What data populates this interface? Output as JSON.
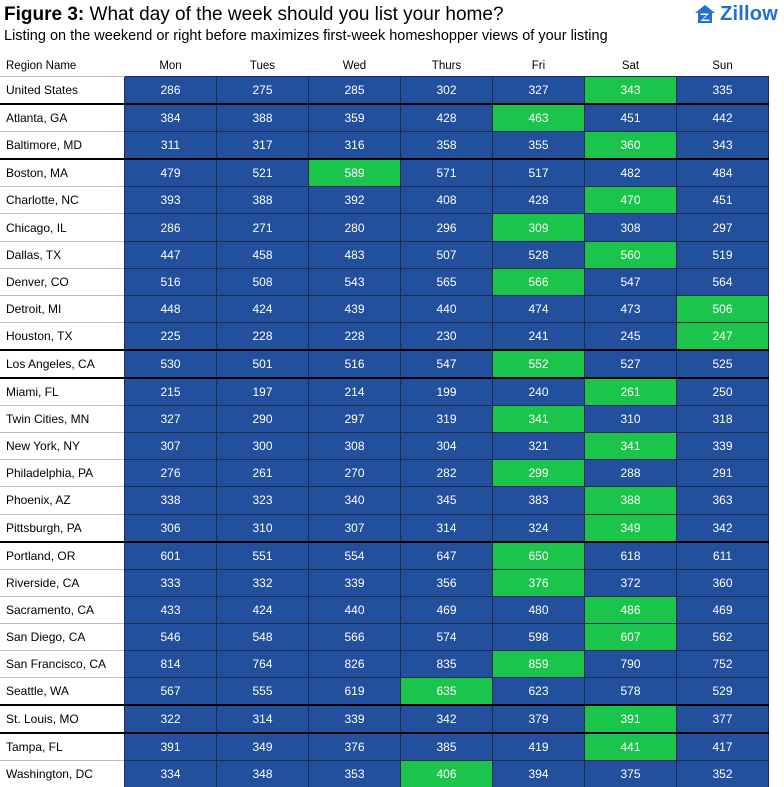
{
  "header": {
    "title_prefix": "Figure 3:",
    "title": " What day of the week should you list your home?",
    "subtitle": "Listing on the weekend or right before maximizes first-week homeshopper views of your listing",
    "logo_text": "Zillow",
    "logo_icon": "zillow-house-icon"
  },
  "colors": {
    "cell": "#23509c",
    "highlight": "#1bc44a",
    "logo": "#1f6fd6"
  },
  "chart_data": {
    "type": "table",
    "row_header": "Region Name",
    "columns": [
      "Mon",
      "Tues",
      "Wed",
      "Thurs",
      "Fri",
      "Sat",
      "Sun"
    ],
    "rows": [
      {
        "region": "United States",
        "values": [
          286,
          275,
          285,
          302,
          327,
          343,
          335
        ],
        "max_col": 5
      },
      {
        "region": "Atlanta, GA",
        "values": [
          384,
          388,
          359,
          428,
          463,
          451,
          442
        ],
        "max_col": 4
      },
      {
        "region": "Baltimore, MD",
        "values": [
          311,
          317,
          316,
          358,
          355,
          360,
          343
        ],
        "max_col": 5
      },
      {
        "region": "Boston, MA",
        "values": [
          479,
          521,
          589,
          571,
          517,
          482,
          484
        ],
        "max_col": 2
      },
      {
        "region": "Charlotte, NC",
        "values": [
          393,
          388,
          392,
          408,
          428,
          470,
          451
        ],
        "max_col": 5
      },
      {
        "region": "Chicago, IL",
        "values": [
          286,
          271,
          280,
          296,
          309,
          308,
          297
        ],
        "max_col": 4
      },
      {
        "region": "Dallas, TX",
        "values": [
          447,
          458,
          483,
          507,
          528,
          560,
          519
        ],
        "max_col": 5
      },
      {
        "region": "Denver, CO",
        "values": [
          516,
          508,
          543,
          565,
          566,
          547,
          564
        ],
        "max_col": 4
      },
      {
        "region": "Detroit, MI",
        "values": [
          448,
          424,
          439,
          440,
          474,
          473,
          506
        ],
        "max_col": 6
      },
      {
        "region": "Houston, TX",
        "values": [
          225,
          228,
          228,
          230,
          241,
          245,
          247
        ],
        "max_col": 6
      },
      {
        "region": "Los Angeles, CA",
        "values": [
          530,
          501,
          516,
          547,
          552,
          527,
          525
        ],
        "max_col": 4
      },
      {
        "region": "Miami, FL",
        "values": [
          215,
          197,
          214,
          199,
          240,
          261,
          250
        ],
        "max_col": 5
      },
      {
        "region": "Twin Cities, MN",
        "values": [
          327,
          290,
          297,
          319,
          341,
          310,
          318
        ],
        "max_col": 4
      },
      {
        "region": "New York, NY",
        "values": [
          307,
          300,
          308,
          304,
          321,
          341,
          339
        ],
        "max_col": 5
      },
      {
        "region": "Philadelphia, PA",
        "values": [
          276,
          261,
          270,
          282,
          299,
          288,
          291
        ],
        "max_col": 4
      },
      {
        "region": "Phoenix, AZ",
        "values": [
          338,
          323,
          340,
          345,
          383,
          388,
          363
        ],
        "max_col": 5
      },
      {
        "region": "Pittsburgh, PA",
        "values": [
          306,
          310,
          307,
          314,
          324,
          349,
          342
        ],
        "max_col": 5
      },
      {
        "region": "Portland, OR",
        "values": [
          601,
          551,
          554,
          647,
          650,
          618,
          611
        ],
        "max_col": 4
      },
      {
        "region": "Riverside, CA",
        "values": [
          333,
          332,
          339,
          356,
          376,
          372,
          360
        ],
        "max_col": 4
      },
      {
        "region": "Sacramento, CA",
        "values": [
          433,
          424,
          440,
          469,
          480,
          486,
          469
        ],
        "max_col": 5
      },
      {
        "region": "San Diego, CA",
        "values": [
          546,
          548,
          566,
          574,
          598,
          607,
          562
        ],
        "max_col": 5
      },
      {
        "region": "San Francisco, CA",
        "values": [
          814,
          764,
          826,
          835,
          859,
          790,
          752
        ],
        "max_col": 4
      },
      {
        "region": "Seattle, WA",
        "values": [
          567,
          555,
          619,
          635,
          623,
          578,
          529
        ],
        "max_col": 3
      },
      {
        "region": "St. Louis, MO",
        "values": [
          322,
          314,
          339,
          342,
          379,
          391,
          377
        ],
        "max_col": 5
      },
      {
        "region": "Tampa, FL",
        "values": [
          391,
          349,
          376,
          385,
          419,
          441,
          417
        ],
        "max_col": 5
      },
      {
        "region": "Washington, DC",
        "values": [
          334,
          348,
          353,
          406,
          394,
          375,
          352
        ],
        "max_col": 3
      }
    ]
  }
}
